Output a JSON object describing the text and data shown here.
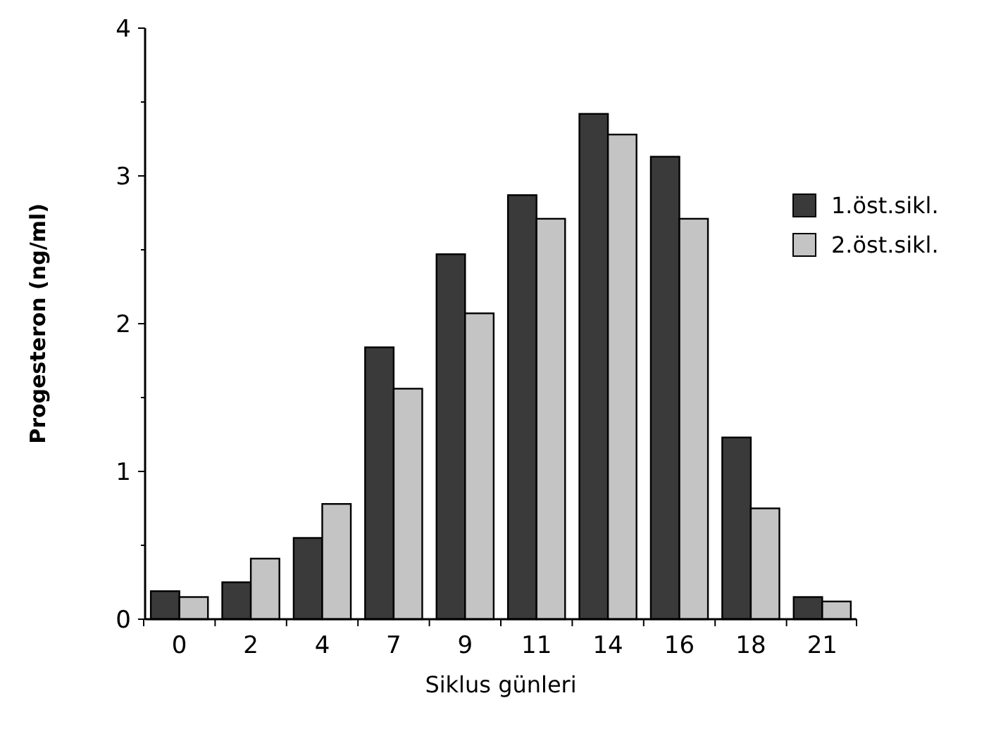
{
  "chart_data": {
    "type": "bar",
    "xlabel": "Siklus günleri",
    "ylabel": "Progesteron (ng/ml)",
    "categories": [
      "0",
      "2",
      "4",
      "7",
      "9",
      "11",
      "14",
      "16",
      "18",
      "21"
    ],
    "series": [
      {
        "name": "1.öst.sikl.",
        "color": "#3a3a3a",
        "values": [
          0.19,
          0.25,
          0.55,
          1.84,
          2.47,
          2.87,
          3.42,
          3.13,
          1.23,
          0.15
        ]
      },
      {
        "name": "2.öst.sikl.",
        "color": "#c4c4c4",
        "values": [
          0.15,
          0.41,
          0.78,
          1.56,
          2.07,
          2.71,
          3.28,
          2.71,
          0.75,
          0.12
        ]
      }
    ],
    "ylim": [
      0,
      4
    ],
    "yticks": [
      0,
      {
        "value": 0.5,
        "label": null
      },
      1,
      {
        "value": 1.5,
        "label": null
      },
      2,
      {
        "value": 2.5,
        "label": null
      },
      3,
      {
        "value": 3.5,
        "label": null
      },
      4
    ],
    "grid": false,
    "legend": "right"
  }
}
